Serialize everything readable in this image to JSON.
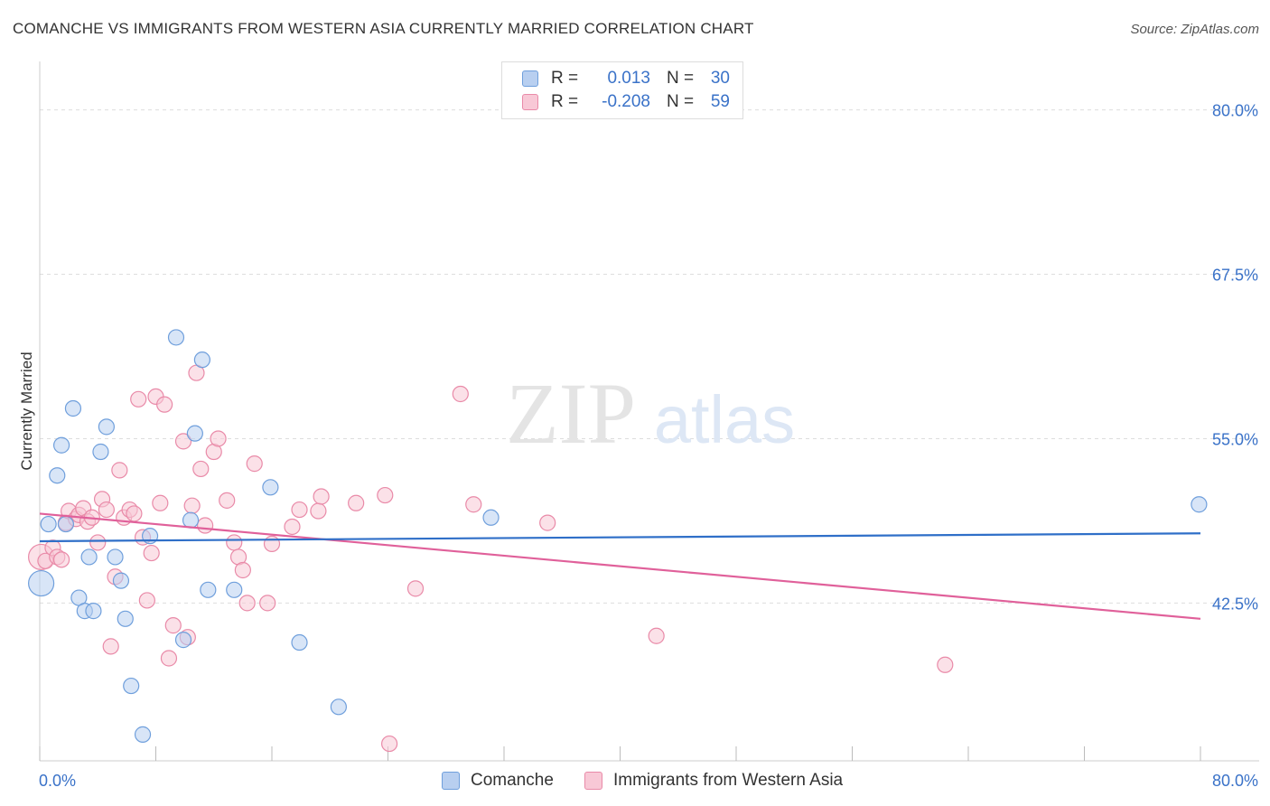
{
  "title": "COMANCHE VS IMMIGRANTS FROM WESTERN ASIA CURRENTLY MARRIED CORRELATION CHART",
  "source": "Source: ZipAtlas.com",
  "watermark": {
    "zip": "ZIP",
    "atlas": "atlas"
  },
  "legend": {
    "rows": [
      {
        "r_label": "R =",
        "r_value": "0.013",
        "n_label": "N =",
        "n_value": "30"
      },
      {
        "r_label": "R =",
        "r_value": "-0.208",
        "n_label": "N =",
        "n_value": "59"
      }
    ]
  },
  "colors": {
    "blue_fill": "#b8cff0",
    "blue_stroke": "#6f9fdc",
    "blue_line": "#2f6fc8",
    "pink_fill": "#f8c8d6",
    "pink_stroke": "#e98aa8",
    "pink_line": "#e0609a",
    "grid": "#dddddd",
    "axis_text": "#3a72c8"
  },
  "chart_data": {
    "type": "scatter",
    "title": "COMANCHE VS IMMIGRANTS FROM WESTERN ASIA CURRENTLY MARRIED CORRELATION CHART",
    "xlabel": "",
    "ylabel": "Currently Married",
    "xlim": [
      0,
      80
    ],
    "ylim": [
      30.5,
      83
    ],
    "y_ticks": [
      42.5,
      55.0,
      67.5,
      80.0
    ],
    "y_tick_labels": [
      "42.5%",
      "55.0%",
      "67.5%",
      "80.0%"
    ],
    "x_tick_labels": [
      "0.0%",
      "80.0%"
    ],
    "grid": true,
    "series": [
      {
        "name": "Comanche",
        "r": 0.013,
        "n": 30,
        "trend": {
          "x": [
            0,
            80
          ],
          "y": [
            47.2,
            47.8
          ]
        },
        "points": [
          {
            "x": 0.1,
            "y": 44.0,
            "s": "l"
          },
          {
            "x": 0.6,
            "y": 48.5
          },
          {
            "x": 1.2,
            "y": 52.2
          },
          {
            "x": 1.5,
            "y": 54.5
          },
          {
            "x": 1.8,
            "y": 48.5
          },
          {
            "x": 2.3,
            "y": 57.3
          },
          {
            "x": 2.7,
            "y": 42.9
          },
          {
            "x": 3.1,
            "y": 41.9
          },
          {
            "x": 3.4,
            "y": 46.0
          },
          {
            "x": 3.7,
            "y": 41.9
          },
          {
            "x": 4.2,
            "y": 54.0
          },
          {
            "x": 4.6,
            "y": 55.9
          },
          {
            "x": 5.2,
            "y": 46.0
          },
          {
            "x": 5.6,
            "y": 44.2
          },
          {
            "x": 5.9,
            "y": 41.3
          },
          {
            "x": 6.3,
            "y": 36.2
          },
          {
            "x": 7.1,
            "y": 32.5
          },
          {
            "x": 7.6,
            "y": 47.6
          },
          {
            "x": 9.4,
            "y": 62.7
          },
          {
            "x": 9.9,
            "y": 39.7
          },
          {
            "x": 10.4,
            "y": 48.8
          },
          {
            "x": 10.7,
            "y": 55.4
          },
          {
            "x": 11.2,
            "y": 61.0
          },
          {
            "x": 11.6,
            "y": 43.5
          },
          {
            "x": 13.4,
            "y": 43.5
          },
          {
            "x": 15.9,
            "y": 51.3
          },
          {
            "x": 17.9,
            "y": 39.5
          },
          {
            "x": 20.6,
            "y": 34.6
          },
          {
            "x": 31.1,
            "y": 49.0
          },
          {
            "x": 79.9,
            "y": 50.0
          }
        ]
      },
      {
        "name": "Immigrants from Western Asia",
        "r": -0.208,
        "n": 59,
        "trend": {
          "x": [
            0,
            80
          ],
          "y": [
            49.3,
            41.3
          ]
        },
        "points": [
          {
            "x": 0.1,
            "y": 46.0,
            "s": "l"
          },
          {
            "x": 0.4,
            "y": 45.7
          },
          {
            "x": 0.9,
            "y": 46.7
          },
          {
            "x": 1.2,
            "y": 46.0
          },
          {
            "x": 1.5,
            "y": 45.8
          },
          {
            "x": 1.8,
            "y": 48.6
          },
          {
            "x": 2.0,
            "y": 49.5
          },
          {
            "x": 2.5,
            "y": 48.9
          },
          {
            "x": 2.7,
            "y": 49.2
          },
          {
            "x": 3.0,
            "y": 49.7
          },
          {
            "x": 3.3,
            "y": 48.7
          },
          {
            "x": 3.6,
            "y": 49.0
          },
          {
            "x": 4.0,
            "y": 47.1
          },
          {
            "x": 4.3,
            "y": 50.4
          },
          {
            "x": 4.6,
            "y": 49.6
          },
          {
            "x": 4.9,
            "y": 39.2
          },
          {
            "x": 5.2,
            "y": 44.5
          },
          {
            "x": 5.5,
            "y": 52.6
          },
          {
            "x": 5.8,
            "y": 49.0
          },
          {
            "x": 6.2,
            "y": 49.6
          },
          {
            "x": 6.5,
            "y": 49.3
          },
          {
            "x": 6.8,
            "y": 58.0
          },
          {
            "x": 7.1,
            "y": 47.5
          },
          {
            "x": 7.4,
            "y": 42.7
          },
          {
            "x": 7.7,
            "y": 46.3
          },
          {
            "x": 8.0,
            "y": 58.2
          },
          {
            "x": 8.3,
            "y": 50.1
          },
          {
            "x": 8.6,
            "y": 57.6
          },
          {
            "x": 8.9,
            "y": 38.3
          },
          {
            "x": 9.2,
            "y": 40.8
          },
          {
            "x": 9.9,
            "y": 54.8
          },
          {
            "x": 10.2,
            "y": 39.9
          },
          {
            "x": 10.5,
            "y": 49.9
          },
          {
            "x": 10.8,
            "y": 60.0
          },
          {
            "x": 11.1,
            "y": 52.7
          },
          {
            "x": 11.4,
            "y": 48.4
          },
          {
            "x": 12.0,
            "y": 54.0
          },
          {
            "x": 12.3,
            "y": 55.0
          },
          {
            "x": 12.9,
            "y": 50.3
          },
          {
            "x": 13.4,
            "y": 47.1
          },
          {
            "x": 13.7,
            "y": 46.0
          },
          {
            "x": 14.0,
            "y": 45.0
          },
          {
            "x": 14.3,
            "y": 42.5
          },
          {
            "x": 14.8,
            "y": 53.1
          },
          {
            "x": 15.7,
            "y": 42.5
          },
          {
            "x": 16.0,
            "y": 47.0
          },
          {
            "x": 17.4,
            "y": 48.3
          },
          {
            "x": 17.9,
            "y": 49.6
          },
          {
            "x": 19.2,
            "y": 49.5
          },
          {
            "x": 19.4,
            "y": 50.6
          },
          {
            "x": 21.8,
            "y": 50.1
          },
          {
            "x": 23.8,
            "y": 50.7
          },
          {
            "x": 24.1,
            "y": 31.8
          },
          {
            "x": 25.9,
            "y": 43.6
          },
          {
            "x": 29.0,
            "y": 58.4
          },
          {
            "x": 29.9,
            "y": 50.0
          },
          {
            "x": 35.0,
            "y": 48.6
          },
          {
            "x": 42.5,
            "y": 40.0
          },
          {
            "x": 62.4,
            "y": 37.8
          }
        ]
      }
    ]
  },
  "bottom_legend": {
    "series_a": "Comanche",
    "series_b": "Immigrants from Western Asia"
  }
}
